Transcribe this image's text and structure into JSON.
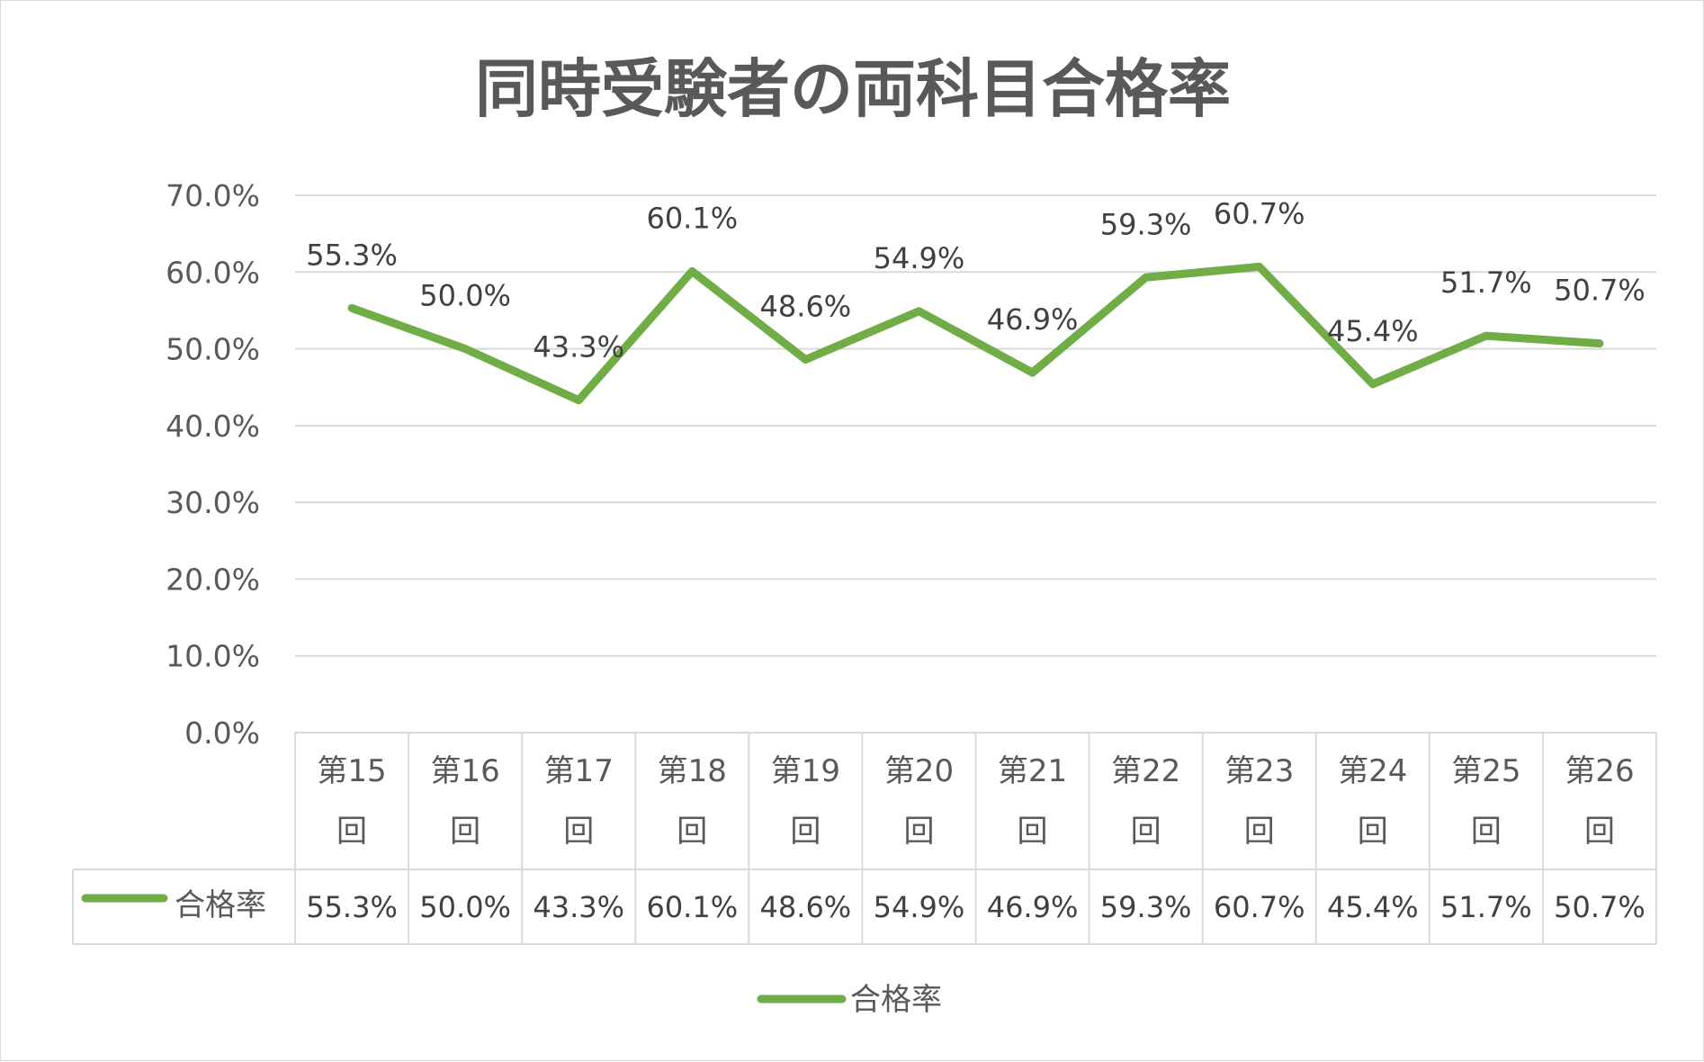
{
  "colors": {
    "series": "#70ad47",
    "grid": "#d9d9d9",
    "text": "#595959",
    "label": "#404040",
    "background": "#ffffff"
  },
  "chart_data": {
    "type": "line",
    "title": "同時受験者の両科目合格率",
    "categories": [
      [
        "第15",
        "回"
      ],
      [
        "第16",
        "回"
      ],
      [
        "第17",
        "回"
      ],
      [
        "第18",
        "回"
      ],
      [
        "第19",
        "回"
      ],
      [
        "第20",
        "回"
      ],
      [
        "第21",
        "回"
      ],
      [
        "第22",
        "回"
      ],
      [
        "第23",
        "回"
      ],
      [
        "第24",
        "回"
      ],
      [
        "第25",
        "回"
      ],
      [
        "第26",
        "回"
      ]
    ],
    "series": [
      {
        "name": "合格率",
        "values": [
          55.3,
          50.0,
          43.3,
          60.1,
          48.6,
          54.9,
          46.9,
          59.3,
          60.7,
          45.4,
          51.7,
          50.7
        ],
        "labels": [
          "55.3%",
          "50.0%",
          "43.3%",
          "60.1%",
          "48.6%",
          "54.9%",
          "46.9%",
          "59.3%",
          "60.7%",
          "45.4%",
          "51.7%",
          "50.7%"
        ]
      }
    ],
    "ylim": [
      0,
      70
    ],
    "yticks": [
      "0.0%",
      "10.0%",
      "20.0%",
      "30.0%",
      "40.0%",
      "50.0%",
      "60.0%",
      "70.0%"
    ],
    "grid": true,
    "data_table": true,
    "legend": "bottom"
  }
}
